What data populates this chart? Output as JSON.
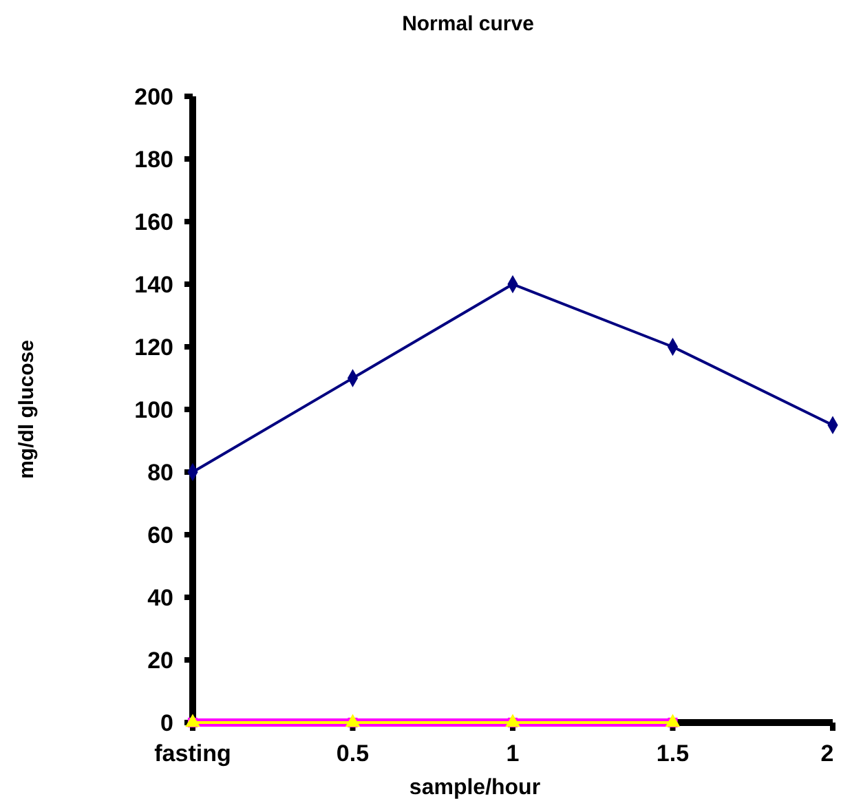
{
  "chart_data": {
    "type": "line",
    "title": "Normal curve",
    "xlabel": "sample/hour",
    "ylabel": "mg/dl glucose",
    "categories": [
      "fasting",
      "0.5",
      "1",
      "1.5",
      "2"
    ],
    "series": [
      {
        "color": "#000080",
        "marker": "diamond",
        "values": [
          80,
          110,
          140,
          120,
          95
        ]
      },
      {
        "color": "#ff00ff",
        "marker": "square",
        "values": [
          0,
          0,
          0,
          0,
          null
        ]
      },
      {
        "color": "#ffff00",
        "marker": "triangle",
        "values": [
          0,
          0,
          0,
          0,
          null
        ]
      }
    ],
    "ylim": [
      0,
      200
    ],
    "yticks": [
      0,
      20,
      40,
      60,
      80,
      100,
      120,
      140,
      160,
      180,
      200
    ],
    "grid": false
  }
}
